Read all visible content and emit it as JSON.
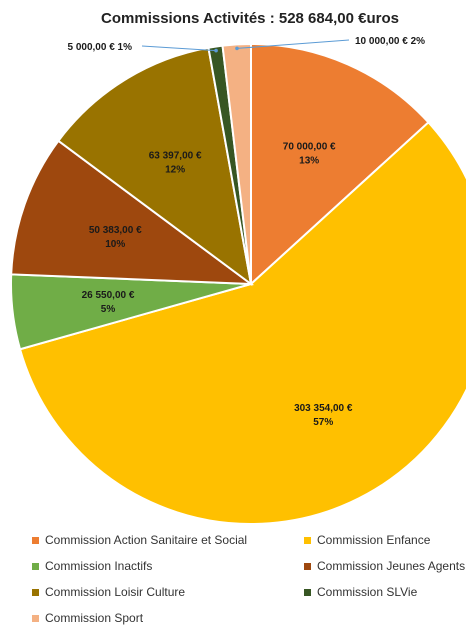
{
  "chart_data": {
    "type": "pie",
    "title": "Commissions  Activités : 528 684,00 €uros",
    "slices": [
      {
        "name": "Commission Action Sanitaire et Social",
        "value": 70000,
        "value_label": "70 000,00 €",
        "pct_label": "13%",
        "color": "#ED7D31"
      },
      {
        "name": "Commission Enfance",
        "value": 303354,
        "value_label": "303 354,00 €",
        "pct_label": "57%",
        "color": "#FFC000"
      },
      {
        "name": "Commission Inactifs",
        "value": 26550,
        "value_label": "26 550,00 €",
        "pct_label": "5%",
        "color": "#70AD47"
      },
      {
        "name": "Commission Jeunes Agents",
        "value": 50383,
        "value_label": "50 383,00 €",
        "pct_label": "10%",
        "color": "#9E480E"
      },
      {
        "name": "Commission Loisir Culture",
        "value": 63397,
        "value_label": "63 397,00 €",
        "pct_label": "12%",
        "color": "#997300"
      },
      {
        "name": "Commission SLVie",
        "value": 5000,
        "value_label": "5 000,00 €",
        "pct_label": "1%",
        "color": "#375623"
      },
      {
        "name": "Commission Sport",
        "value": 10000,
        "value_label": "10 000,00 €",
        "pct_label": "2%",
        "color": "#F4B183"
      }
    ],
    "start_angle_deg": 0,
    "direction": "clockwise",
    "legend_position": "bottom"
  }
}
